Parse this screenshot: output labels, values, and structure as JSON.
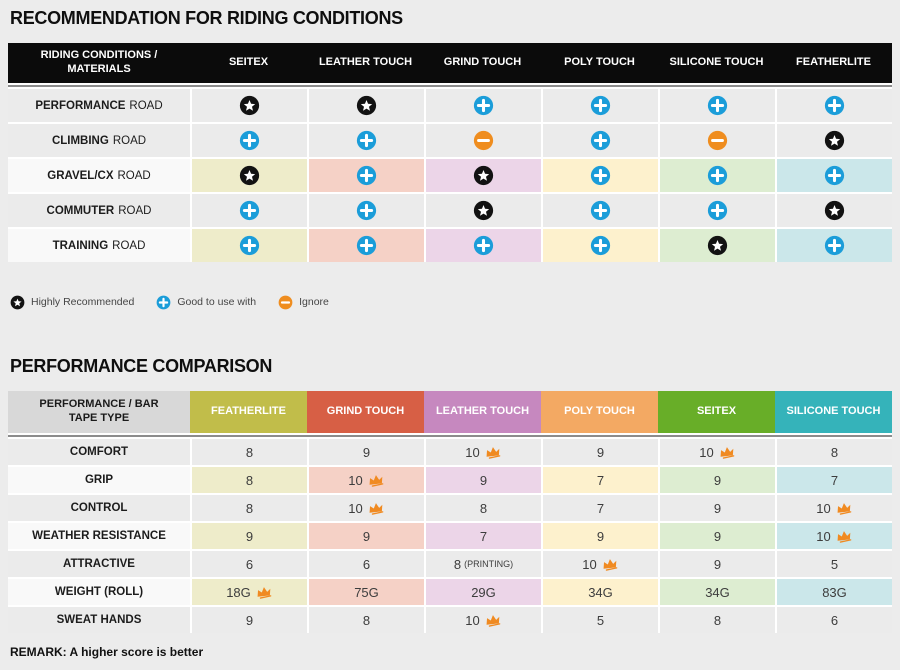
{
  "table1": {
    "title": "RECOMMENDATION FOR RIDING CONDITIONS",
    "header": {
      "label": "RIDING CONDITIONS / MATERIALS",
      "columns": [
        "SEITEX",
        "LEATHER TOUCH",
        "GRIND TOUCH",
        "POLY TOUCH",
        "SILICONE TOUCH",
        "FEATHERLITE"
      ]
    },
    "rows": [
      {
        "bold": "PERFORMANCE",
        "rest": "ROAD",
        "tinted": false,
        "cells": [
          "star",
          "star",
          "plus",
          "plus",
          "plus",
          "plus"
        ]
      },
      {
        "bold": "CLIMBING",
        "rest": "ROAD",
        "tinted": false,
        "cells": [
          "plus",
          "plus",
          "minus",
          "plus",
          "minus",
          "star"
        ]
      },
      {
        "bold": "GRAVEL/CX",
        "rest": "ROAD",
        "tinted": true,
        "cells": [
          "star",
          "plus",
          "star",
          "plus",
          "plus",
          "plus"
        ]
      },
      {
        "bold": "COMMUTER",
        "rest": "ROAD",
        "tinted": false,
        "cells": [
          "plus",
          "plus",
          "star",
          "plus",
          "plus",
          "star"
        ]
      },
      {
        "bold": "TRAINING",
        "rest": "ROAD",
        "tinted": true,
        "cells": [
          "plus",
          "plus",
          "plus",
          "plus",
          "star",
          "plus"
        ]
      }
    ],
    "legend": [
      {
        "icon": "star",
        "label": "Highly Recommended"
      },
      {
        "icon": "plus",
        "label": "Good to use with"
      },
      {
        "icon": "minus",
        "label": "Ignore"
      }
    ]
  },
  "table2": {
    "title": "PERFORMANCE COMPARISON",
    "header": {
      "label": "PERFORMANCE / BAR TAPE TYPE",
      "columns": [
        "FEATHERLITE",
        "GRIND TOUCH",
        "LEATHER TOUCH",
        "POLY TOUCH",
        "SEITEX",
        "SILICONE TOUCH"
      ]
    },
    "rows": [
      {
        "label": "COMFORT",
        "tinted": false,
        "cells": [
          {
            "text": "8"
          },
          {
            "text": "9"
          },
          {
            "text": "10",
            "crown": true
          },
          {
            "text": "9"
          },
          {
            "text": "10",
            "crown": true
          },
          {
            "text": "8"
          }
        ]
      },
      {
        "label": "GRIP",
        "tinted": true,
        "cells": [
          {
            "text": "8"
          },
          {
            "text": "10",
            "crown": true
          },
          {
            "text": "9"
          },
          {
            "text": "7"
          },
          {
            "text": "9"
          },
          {
            "text": "7"
          }
        ]
      },
      {
        "label": "CONTROL",
        "tinted": false,
        "cells": [
          {
            "text": "8"
          },
          {
            "text": "10",
            "crown": true
          },
          {
            "text": "8"
          },
          {
            "text": "7"
          },
          {
            "text": "9"
          },
          {
            "text": "10",
            "crown": true
          }
        ]
      },
      {
        "label": "WEATHER RESISTANCE",
        "tinted": true,
        "cells": [
          {
            "text": "9"
          },
          {
            "text": "9"
          },
          {
            "text": "7"
          },
          {
            "text": "9"
          },
          {
            "text": "9"
          },
          {
            "text": "10",
            "crown": true
          }
        ]
      },
      {
        "label": "ATTRACTIVE",
        "tinted": false,
        "cells": [
          {
            "text": "6"
          },
          {
            "text": "6"
          },
          {
            "text": "8",
            "suffix": "(PRINTING)"
          },
          {
            "text": "10",
            "crown": true
          },
          {
            "text": "9"
          },
          {
            "text": "5"
          }
        ]
      },
      {
        "label": "WEIGHT (ROLL)",
        "tinted": true,
        "cells": [
          {
            "text": "18G",
            "crown": true
          },
          {
            "text": "75G"
          },
          {
            "text": "29G"
          },
          {
            "text": "34G"
          },
          {
            "text": "34G"
          },
          {
            "text": "83G"
          }
        ]
      },
      {
        "label": "SWEAT HANDS",
        "tinted": false,
        "cells": [
          {
            "text": "9"
          },
          {
            "text": "8"
          },
          {
            "text": "10",
            "crown": true
          },
          {
            "text": "5"
          },
          {
            "text": "8"
          },
          {
            "text": "6"
          }
        ]
      }
    ],
    "remark": "REMARK: A higher score is better"
  },
  "colors": {
    "page_bg": "#ececec",
    "plain_row": "#ebebeb",
    "tinted_label": "#f9f9f9",
    "header_black": "#0b0b0b",
    "header_label_gray": "#d8d8d8",
    "icon_star": "#121212",
    "icon_plus": "#1b9dd9",
    "icon_minus": "#ef8d1f",
    "crown": "#f08a21",
    "column_tints": [
      "#eeecca",
      "#f5d1c6",
      "#ecd5e8",
      "#fdf1cd",
      "#ddedd1",
      "#cbe7ea"
    ],
    "t2_header_colors": [
      "#c1bd4a",
      "#d75f45",
      "#c688bf",
      "#f3a963",
      "#68ae28",
      "#35b3ba"
    ]
  },
  "chart_data": [
    {
      "type": "table",
      "title": "RECOMMENDATION FOR RIDING CONDITIONS",
      "columns": [
        "RIDING CONDITIONS / MATERIALS",
        "SEITEX",
        "LEATHER TOUCH",
        "GRIND TOUCH",
        "POLY TOUCH",
        "SILICONE TOUCH",
        "FEATHERLITE"
      ],
      "rows": [
        [
          "PERFORMANCE ROAD",
          "highly_recommended",
          "highly_recommended",
          "good_to_use_with",
          "good_to_use_with",
          "good_to_use_with",
          "good_to_use_with"
        ],
        [
          "CLIMBING ROAD",
          "good_to_use_with",
          "good_to_use_with",
          "ignore",
          "good_to_use_with",
          "ignore",
          "highly_recommended"
        ],
        [
          "GRAVEL/CX ROAD",
          "highly_recommended",
          "good_to_use_with",
          "highly_recommended",
          "good_to_use_with",
          "good_to_use_with",
          "good_to_use_with"
        ],
        [
          "COMMUTER ROAD",
          "good_to_use_with",
          "good_to_use_with",
          "highly_recommended",
          "good_to_use_with",
          "good_to_use_with",
          "highly_recommended"
        ],
        [
          "TRAINING ROAD",
          "good_to_use_with",
          "good_to_use_with",
          "good_to_use_with",
          "good_to_use_with",
          "highly_recommended",
          "good_to_use_with"
        ]
      ],
      "legend": [
        "Highly Recommended",
        "Good to use with",
        "Ignore"
      ]
    },
    {
      "type": "table",
      "title": "PERFORMANCE COMPARISON",
      "columns": [
        "PERFORMANCE / BAR TAPE TYPE",
        "FEATHERLITE",
        "GRIND TOUCH",
        "LEATHER TOUCH",
        "POLY TOUCH",
        "SEITEX",
        "SILICONE TOUCH"
      ],
      "rows": [
        [
          "COMFORT",
          "8",
          "9",
          "10 (best)",
          "9",
          "10 (best)",
          "8"
        ],
        [
          "GRIP",
          "8",
          "10 (best)",
          "9",
          "7",
          "9",
          "7"
        ],
        [
          "CONTROL",
          "8",
          "10 (best)",
          "8",
          "7",
          "9",
          "10 (best)"
        ],
        [
          "WEATHER RESISTANCE",
          "9",
          "9",
          "7",
          "9",
          "9",
          "10 (best)"
        ],
        [
          "ATTRACTIVE",
          "6",
          "6",
          "8 (PRINTING)",
          "10 (best)",
          "9",
          "5"
        ],
        [
          "WEIGHT (ROLL)",
          "18G (best)",
          "75G",
          "29G",
          "34G",
          "34G",
          "83G"
        ],
        [
          "SWEAT HANDS",
          "9",
          "8",
          "10 (best)",
          "5",
          "8",
          "6"
        ]
      ],
      "remark": "REMARK: A higher score is better"
    }
  ]
}
